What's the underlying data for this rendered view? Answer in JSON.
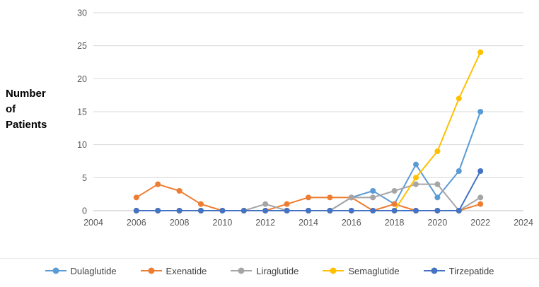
{
  "y_axis_title_lines": [
    "Number",
    "of",
    "Patients"
  ],
  "colors": {
    "grid": "#d9d9d9",
    "axis": "#bfbfbf",
    "tick_text": "#595959"
  },
  "chart_data": {
    "type": "line",
    "title": "",
    "xlabel": "",
    "ylabel": "Number of Patients",
    "xlim": [
      2004,
      2024
    ],
    "ylim": [
      0,
      30
    ],
    "x_ticks": [
      2004,
      2006,
      2008,
      2010,
      2012,
      2014,
      2016,
      2018,
      2020,
      2022,
      2024
    ],
    "y_ticks": [
      0,
      5,
      10,
      15,
      20,
      25,
      30
    ],
    "grid": "horizontal",
    "legend_position": "bottom",
    "x": [
      2006,
      2007,
      2008,
      2009,
      2010,
      2011,
      2012,
      2013,
      2014,
      2015,
      2016,
      2017,
      2018,
      2019,
      2020,
      2021,
      2022
    ],
    "series": [
      {
        "name": "Dulaglutide",
        "color": "#5B9BD5",
        "values": [
          0,
          0,
          0,
          0,
          0,
          0,
          0,
          0,
          0,
          0,
          2,
          3,
          1,
          7,
          2,
          6,
          15
        ]
      },
      {
        "name": "Exenatide",
        "color": "#ED7D31",
        "values": [
          2,
          4,
          3,
          1,
          0,
          0,
          0,
          1,
          2,
          2,
          2,
          0,
          1,
          0,
          0,
          0,
          1
        ]
      },
      {
        "name": "Liraglutide",
        "color": "#A5A5A5",
        "values": [
          0,
          0,
          0,
          0,
          0,
          0,
          1,
          0,
          0,
          0,
          2,
          2,
          3,
          4,
          4,
          0,
          2
        ]
      },
      {
        "name": "Semaglutide",
        "color": "#FFC000",
        "values": [
          0,
          0,
          0,
          0,
          0,
          0,
          0,
          0,
          0,
          0,
          0,
          0,
          0,
          5,
          9,
          17,
          24
        ]
      },
      {
        "name": "Tirzepatide",
        "color": "#4472C4",
        "values": [
          0,
          0,
          0,
          0,
          0,
          0,
          0,
          0,
          0,
          0,
          0,
          0,
          0,
          0,
          0,
          0,
          6
        ]
      }
    ]
  }
}
